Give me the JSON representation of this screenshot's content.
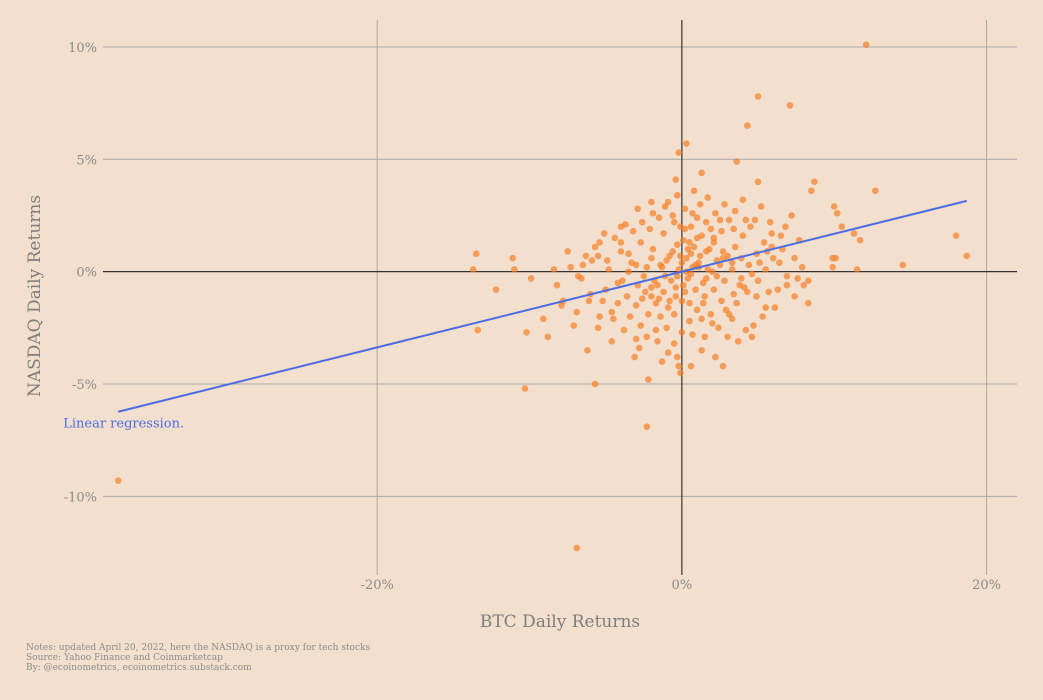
{
  "chart_data": {
    "type": "scatter",
    "xlabel": "BTC Daily Returns",
    "ylabel": "NASDAQ Daily Returns",
    "xlim": [
      -38,
      22
    ],
    "ylim": [
      -13.5,
      11.2
    ],
    "x_ticks": [
      {
        "value": -20,
        "label": "-20%"
      },
      {
        "value": 0,
        "label": "0%"
      },
      {
        "value": 20,
        "label": "20%"
      }
    ],
    "y_ticks": [
      {
        "value": 10,
        "label": "10%"
      },
      {
        "value": 5,
        "label": "5%"
      },
      {
        "value": 0,
        "label": "0%"
      },
      {
        "value": -5,
        "label": "-5%"
      },
      {
        "value": -10,
        "label": "-10%"
      }
    ],
    "grid": true,
    "regression": {
      "label": "Linear regression.",
      "slope": 0.1685,
      "intercept": 0.0,
      "x_range": [
        -37,
        18.7
      ]
    },
    "point_color": "#f47c20",
    "line_color": "#4a6de5",
    "points": [
      [
        -37,
        -9.3
      ],
      [
        -12.2,
        -0.8
      ],
      [
        -6.9,
        -12.3
      ],
      [
        -2.3,
        -6.9
      ],
      [
        12.1,
        10.1
      ],
      [
        5.0,
        7.8
      ],
      [
        7.1,
        7.4
      ],
      [
        4.3,
        6.5
      ],
      [
        -10.3,
        -5.2
      ],
      [
        -13.5,
        0.8
      ],
      [
        -13.7,
        0.1
      ],
      [
        -13.4,
        -2.6
      ],
      [
        -11.1,
        0.6
      ],
      [
        -11.0,
        0.1
      ],
      [
        -10.2,
        -2.7
      ],
      [
        18.0,
        1.6
      ],
      [
        18.7,
        0.7
      ],
      [
        14.5,
        0.3
      ],
      [
        12.7,
        3.6
      ],
      [
        11.7,
        1.4
      ],
      [
        11.5,
        0.1
      ],
      [
        11.3,
        1.7
      ],
      [
        10.5,
        2.0
      ],
      [
        10.0,
        2.9
      ],
      [
        9.9,
        0.6
      ],
      [
        10.2,
        2.6
      ],
      [
        9.9,
        0.2
      ],
      [
        10.1,
        0.6
      ],
      [
        8.7,
        4.0
      ],
      [
        8.5,
        3.6
      ],
      [
        8.3,
        -1.4
      ],
      [
        8.3,
        -0.4
      ],
      [
        0.3,
        5.7
      ],
      [
        -0.2,
        5.3
      ],
      [
        1.3,
        4.4
      ],
      [
        3.6,
        4.9
      ],
      [
        5.0,
        4.0
      ],
      [
        -0.4,
        4.1
      ],
      [
        -5.7,
        -5.0
      ],
      [
        -2.2,
        -4.8
      ],
      [
        -0.2,
        -4.2
      ],
      [
        0.6,
        -4.2
      ],
      [
        -0.1,
        -4.5
      ],
      [
        2.7,
        -4.2
      ],
      [
        -6.9,
        -1.8
      ],
      [
        -7.1,
        -2.4
      ],
      [
        -6.2,
        -3.5
      ],
      [
        -5.2,
        -1.3
      ],
      [
        -5.1,
        1.7
      ],
      [
        -5.7,
        1.1
      ],
      [
        -8.4,
        0.1
      ],
      [
        -8.2,
        -0.6
      ],
      [
        -9.1,
        -2.1
      ],
      [
        -7.8,
        -1.3
      ],
      [
        -9.9,
        -0.3
      ],
      [
        -7.3,
        0.2
      ],
      [
        -6.5,
        0.3
      ],
      [
        -4.5,
        -2.1
      ],
      [
        -3.1,
        -3.8
      ],
      [
        -2.3,
        -2.9
      ],
      [
        -1.6,
        -3.1
      ],
      [
        -0.9,
        -3.6
      ],
      [
        1.3,
        -3.5
      ],
      [
        2.2,
        -3.8
      ],
      [
        3.7,
        -3.1
      ],
      [
        4.6,
        -2.9
      ],
      [
        4.2,
        -2.6
      ],
      [
        5.5,
        -1.6
      ],
      [
        6.3,
        -0.8
      ],
      [
        6.9,
        -0.2
      ],
      [
        7.4,
        0.6
      ],
      [
        7.7,
        1.4
      ],
      [
        7.2,
        2.5
      ],
      [
        6.5,
        1.6
      ],
      [
        5.9,
        1.1
      ],
      [
        4.8,
        2.3
      ],
      [
        4.0,
        3.2
      ],
      [
        3.4,
        1.9
      ],
      [
        2.7,
        0.9
      ],
      [
        2.1,
        1.5
      ],
      [
        1.6,
        2.2
      ],
      [
        1.2,
        3.0
      ],
      [
        0.7,
        2.6
      ],
      [
        0.2,
        1.9
      ],
      [
        -0.3,
        1.2
      ],
      [
        -0.8,
        0.7
      ],
      [
        -1.3,
        0.2
      ],
      [
        -1.8,
        -0.4
      ],
      [
        -2.4,
        -0.9
      ],
      [
        -3.0,
        -1.5
      ],
      [
        -3.6,
        -1.1
      ],
      [
        -4.2,
        -0.5
      ],
      [
        -4.8,
        0.1
      ],
      [
        -5.5,
        0.7
      ],
      [
        -4.0,
        0.9
      ],
      [
        -3.3,
        0.4
      ],
      [
        -2.7,
        1.3
      ],
      [
        -2.1,
        1.9
      ],
      [
        -1.5,
        2.4
      ],
      [
        -0.9,
        3.1
      ],
      [
        -0.5,
        2.2
      ],
      [
        0.1,
        1.4
      ],
      [
        0.6,
        0.8
      ],
      [
        1.1,
        0.2
      ],
      [
        1.6,
        -0.3
      ],
      [
        2.1,
        -0.8
      ],
      [
        2.6,
        -1.3
      ],
      [
        3.1,
        -1.9
      ],
      [
        3.6,
        -1.4
      ],
      [
        4.1,
        -0.7
      ],
      [
        4.6,
        -0.1
      ],
      [
        5.1,
        0.4
      ],
      [
        5.6,
        0.9
      ],
      [
        3.9,
        0.6
      ],
      [
        3.3,
        0.1
      ],
      [
        2.8,
        -0.4
      ],
      [
        2.3,
        0.5
      ],
      [
        1.8,
        1.0
      ],
      [
        1.3,
        1.6
      ],
      [
        0.8,
        1.1
      ],
      [
        0.3,
        0.6
      ],
      [
        -0.2,
        0.1
      ],
      [
        -0.7,
        -0.4
      ],
      [
        -1.2,
        -0.9
      ],
      [
        -1.7,
        -1.4
      ],
      [
        -2.2,
        -1.9
      ],
      [
        -2.7,
        -2.4
      ],
      [
        -1.4,
        -2.0
      ],
      [
        -0.9,
        -1.6
      ],
      [
        -0.4,
        -1.1
      ],
      [
        0.1,
        -0.6
      ],
      [
        0.6,
        -0.1
      ],
      [
        1.1,
        0.4
      ],
      [
        1.6,
        0.9
      ],
      [
        2.1,
        1.3
      ],
      [
        2.6,
        1.8
      ],
      [
        3.1,
        2.3
      ],
      [
        1.5,
        -1.1
      ],
      [
        1.0,
        -1.7
      ],
      [
        0.5,
        -2.2
      ],
      [
        0.0,
        -2.7
      ],
      [
        -0.5,
        -3.2
      ],
      [
        -1.0,
        -2.5
      ],
      [
        -1.5,
        -1.2
      ],
      [
        -2.0,
        -0.7
      ],
      [
        -2.5,
        -0.2
      ],
      [
        -3.0,
        0.3
      ],
      [
        -3.5,
        0.8
      ],
      [
        -4.0,
        1.3
      ],
      [
        -3.2,
        1.8
      ],
      [
        -2.6,
        2.2
      ],
      [
        -1.9,
        2.6
      ],
      [
        -1.2,
        1.7
      ],
      [
        -0.6,
        0.9
      ],
      [
        0.0,
        0.4
      ],
      [
        0.4,
        -0.3
      ],
      [
        0.9,
        -0.8
      ],
      [
        1.4,
        -1.4
      ],
      [
        1.9,
        -1.9
      ],
      [
        2.4,
        -2.5
      ],
      [
        2.9,
        -1.7
      ],
      [
        3.4,
        -1.0
      ],
      [
        3.9,
        -0.3
      ],
      [
        4.4,
        0.3
      ],
      [
        4.9,
        0.8
      ],
      [
        5.4,
        1.3
      ],
      [
        5.9,
        1.7
      ],
      [
        6.4,
        0.4
      ],
      [
        6.9,
        -0.6
      ],
      [
        7.4,
        -1.1
      ],
      [
        6.1,
        -1.6
      ],
      [
        5.3,
        -2.0
      ],
      [
        4.7,
        -2.4
      ],
      [
        3.0,
        -2.9
      ],
      [
        -3.8,
        -2.6
      ],
      [
        -4.6,
        -3.1
      ],
      [
        -5.4,
        -2.0
      ],
      [
        -6.0,
        -1.0
      ],
      [
        -6.6,
        -0.3
      ],
      [
        -5.9,
        0.5
      ],
      [
        -4.4,
        1.5
      ],
      [
        -3.7,
        2.1
      ],
      [
        -2.9,
        2.8
      ],
      [
        -2.0,
        3.1
      ],
      [
        -1.1,
        2.9
      ],
      [
        -0.6,
        2.5
      ],
      [
        0.6,
        2.0
      ],
      [
        1.0,
        1.5
      ],
      [
        0.4,
        1.0
      ],
      [
        -0.1,
        0.7
      ],
      [
        -0.3,
        -0.2
      ],
      [
        0.2,
        -0.9
      ],
      [
        -0.8,
        -1.3
      ],
      [
        -1.6,
        -0.6
      ],
      [
        -2.3,
        0.2
      ],
      [
        -1.0,
        0.5
      ],
      [
        -1.9,
        1.0
      ],
      [
        0.9,
        0.3
      ],
      [
        1.4,
        -0.5
      ],
      [
        2.0,
        0.0
      ],
      [
        2.5,
        0.3
      ],
      [
        3.0,
        0.7
      ],
      [
        3.5,
        1.1
      ],
      [
        4.0,
        1.6
      ],
      [
        4.5,
        2.0
      ],
      [
        2.2,
        2.6
      ],
      [
        2.8,
        3.0
      ],
      [
        1.7,
        3.3
      ],
      [
        0.8,
        3.6
      ],
      [
        -0.3,
        3.4
      ],
      [
        0.2,
        2.8
      ],
      [
        -1.7,
        -2.6
      ],
      [
        -2.8,
        -3.4
      ],
      [
        -3.4,
        -2.0
      ],
      [
        -4.2,
        -1.4
      ],
      [
        -3.9,
        -0.4
      ],
      [
        -2.9,
        -0.6
      ],
      [
        -2.0,
        -1.1
      ],
      [
        -1.1,
        -0.2
      ],
      [
        0.3,
        0.0
      ],
      [
        0.7,
        0.2
      ],
      [
        1.2,
        0.7
      ],
      [
        1.7,
        0.1
      ],
      [
        2.3,
        -0.2
      ],
      [
        2.7,
        0.6
      ],
      [
        3.3,
        0.4
      ],
      [
        3.8,
        -0.6
      ],
      [
        4.3,
        -0.9
      ],
      [
        5.0,
        -0.4
      ],
      [
        5.5,
        0.1
      ],
      [
        6.0,
        0.6
      ],
      [
        6.6,
        1.0
      ],
      [
        7.9,
        0.2
      ],
      [
        8.0,
        -0.6
      ],
      [
        7.6,
        -0.3
      ],
      [
        -7.5,
        0.9
      ],
      [
        -6.3,
        0.7
      ],
      [
        -5.0,
        -0.8
      ],
      [
        -4.6,
        -1.8
      ],
      [
        -3.5,
        0.0
      ],
      [
        -2.6,
        -1.2
      ],
      [
        -1.4,
        0.3
      ],
      [
        -0.4,
        -0.7
      ],
      [
        0.5,
        -1.4
      ],
      [
        1.3,
        -2.1
      ],
      [
        2.0,
        -2.3
      ],
      [
        -0.5,
        -1.9
      ],
      [
        0.0,
        -1.3
      ],
      [
        0.5,
        1.3
      ],
      [
        -0.1,
        2.0
      ],
      [
        1.0,
        2.4
      ],
      [
        1.9,
        1.9
      ],
      [
        2.5,
        2.3
      ],
      [
        3.5,
        2.7
      ],
      [
        4.2,
        2.3
      ],
      [
        5.2,
        2.9
      ],
      [
        5.8,
        2.2
      ],
      [
        6.8,
        2.0
      ],
      [
        0.7,
        -2.8
      ],
      [
        -1.3,
        -4.0
      ],
      [
        -0.3,
        -3.8
      ],
      [
        1.5,
        -2.9
      ],
      [
        -2.0,
        0.6
      ],
      [
        -4.9,
        0.5
      ],
      [
        -6.8,
        -0.2
      ],
      [
        -7.9,
        -1.5
      ],
      [
        -8.8,
        -2.9
      ],
      [
        -5.5,
        -2.5
      ],
      [
        -4.0,
        2.0
      ],
      [
        -5.4,
        1.3
      ],
      [
        -6.1,
        -1.3
      ],
      [
        -3.0,
        -3.0
      ],
      [
        3.3,
        -2.1
      ],
      [
        4.9,
        -1.1
      ],
      [
        5.7,
        -0.9
      ]
    ]
  },
  "notes": [
    "Notes: updated April 20, 2022, here the NASDAQ is a proxy for tech stocks",
    "Source: Yahoo Finance and Coinmarketcap",
    "By: @ecoinometrics, ecoinometrics.substack.com"
  ]
}
